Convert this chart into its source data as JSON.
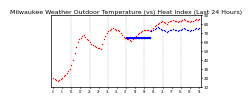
{
  "title": "Milwaukee Weather Outdoor Temperature (vs) Heat Index (Last 24 Hours)",
  "title_fontsize": 4.5,
  "background_color": "#ffffff",
  "grid_color": "#aaaaaa",
  "ylim": [
    10,
    90
  ],
  "yticks": [
    10,
    20,
    30,
    40,
    50,
    60,
    70,
    80,
    90
  ],
  "n_points": 96,
  "temp_color": "#ff0000",
  "heat_color": "#0000ff",
  "dot_size": 1.0,
  "temp_data": [
    20,
    19,
    18,
    17,
    18,
    19,
    20,
    22,
    24,
    26,
    28,
    30,
    35,
    40,
    48,
    55,
    60,
    63,
    65,
    67,
    68,
    66,
    64,
    62,
    60,
    58,
    57,
    56,
    55,
    54,
    53,
    52,
    58,
    63,
    67,
    70,
    72,
    74,
    75,
    76,
    75,
    74,
    73,
    72,
    70,
    68,
    66,
    65,
    64,
    63,
    62,
    61,
    63,
    65,
    67,
    69,
    70,
    71,
    72,
    73,
    74,
    74,
    73,
    72,
    74,
    76,
    78,
    79,
    80,
    81,
    82,
    83,
    82,
    81,
    80,
    82,
    83,
    84,
    85,
    84,
    83,
    82,
    83,
    84,
    85,
    86,
    85,
    84,
    83,
    82,
    83,
    84,
    85,
    86,
    85,
    86
  ],
  "heat_data": [
    null,
    null,
    null,
    null,
    null,
    null,
    null,
    null,
    null,
    null,
    null,
    null,
    null,
    null,
    null,
    null,
    null,
    null,
    null,
    null,
    null,
    null,
    null,
    null,
    null,
    null,
    null,
    null,
    null,
    null,
    null,
    null,
    null,
    null,
    null,
    null,
    null,
    null,
    null,
    null,
    null,
    null,
    null,
    null,
    null,
    null,
    null,
    null,
    65,
    65,
    65,
    65,
    65,
    65,
    65,
    65,
    65,
    65,
    65,
    65,
    65,
    65,
    65,
    65,
    72,
    74,
    75,
    76,
    77,
    76,
    75,
    74,
    73,
    72,
    71,
    72,
    73,
    74,
    75,
    74,
    73,
    72,
    73,
    74,
    75,
    76,
    75,
    74,
    73,
    72,
    73,
    74,
    75,
    76,
    75,
    76
  ]
}
